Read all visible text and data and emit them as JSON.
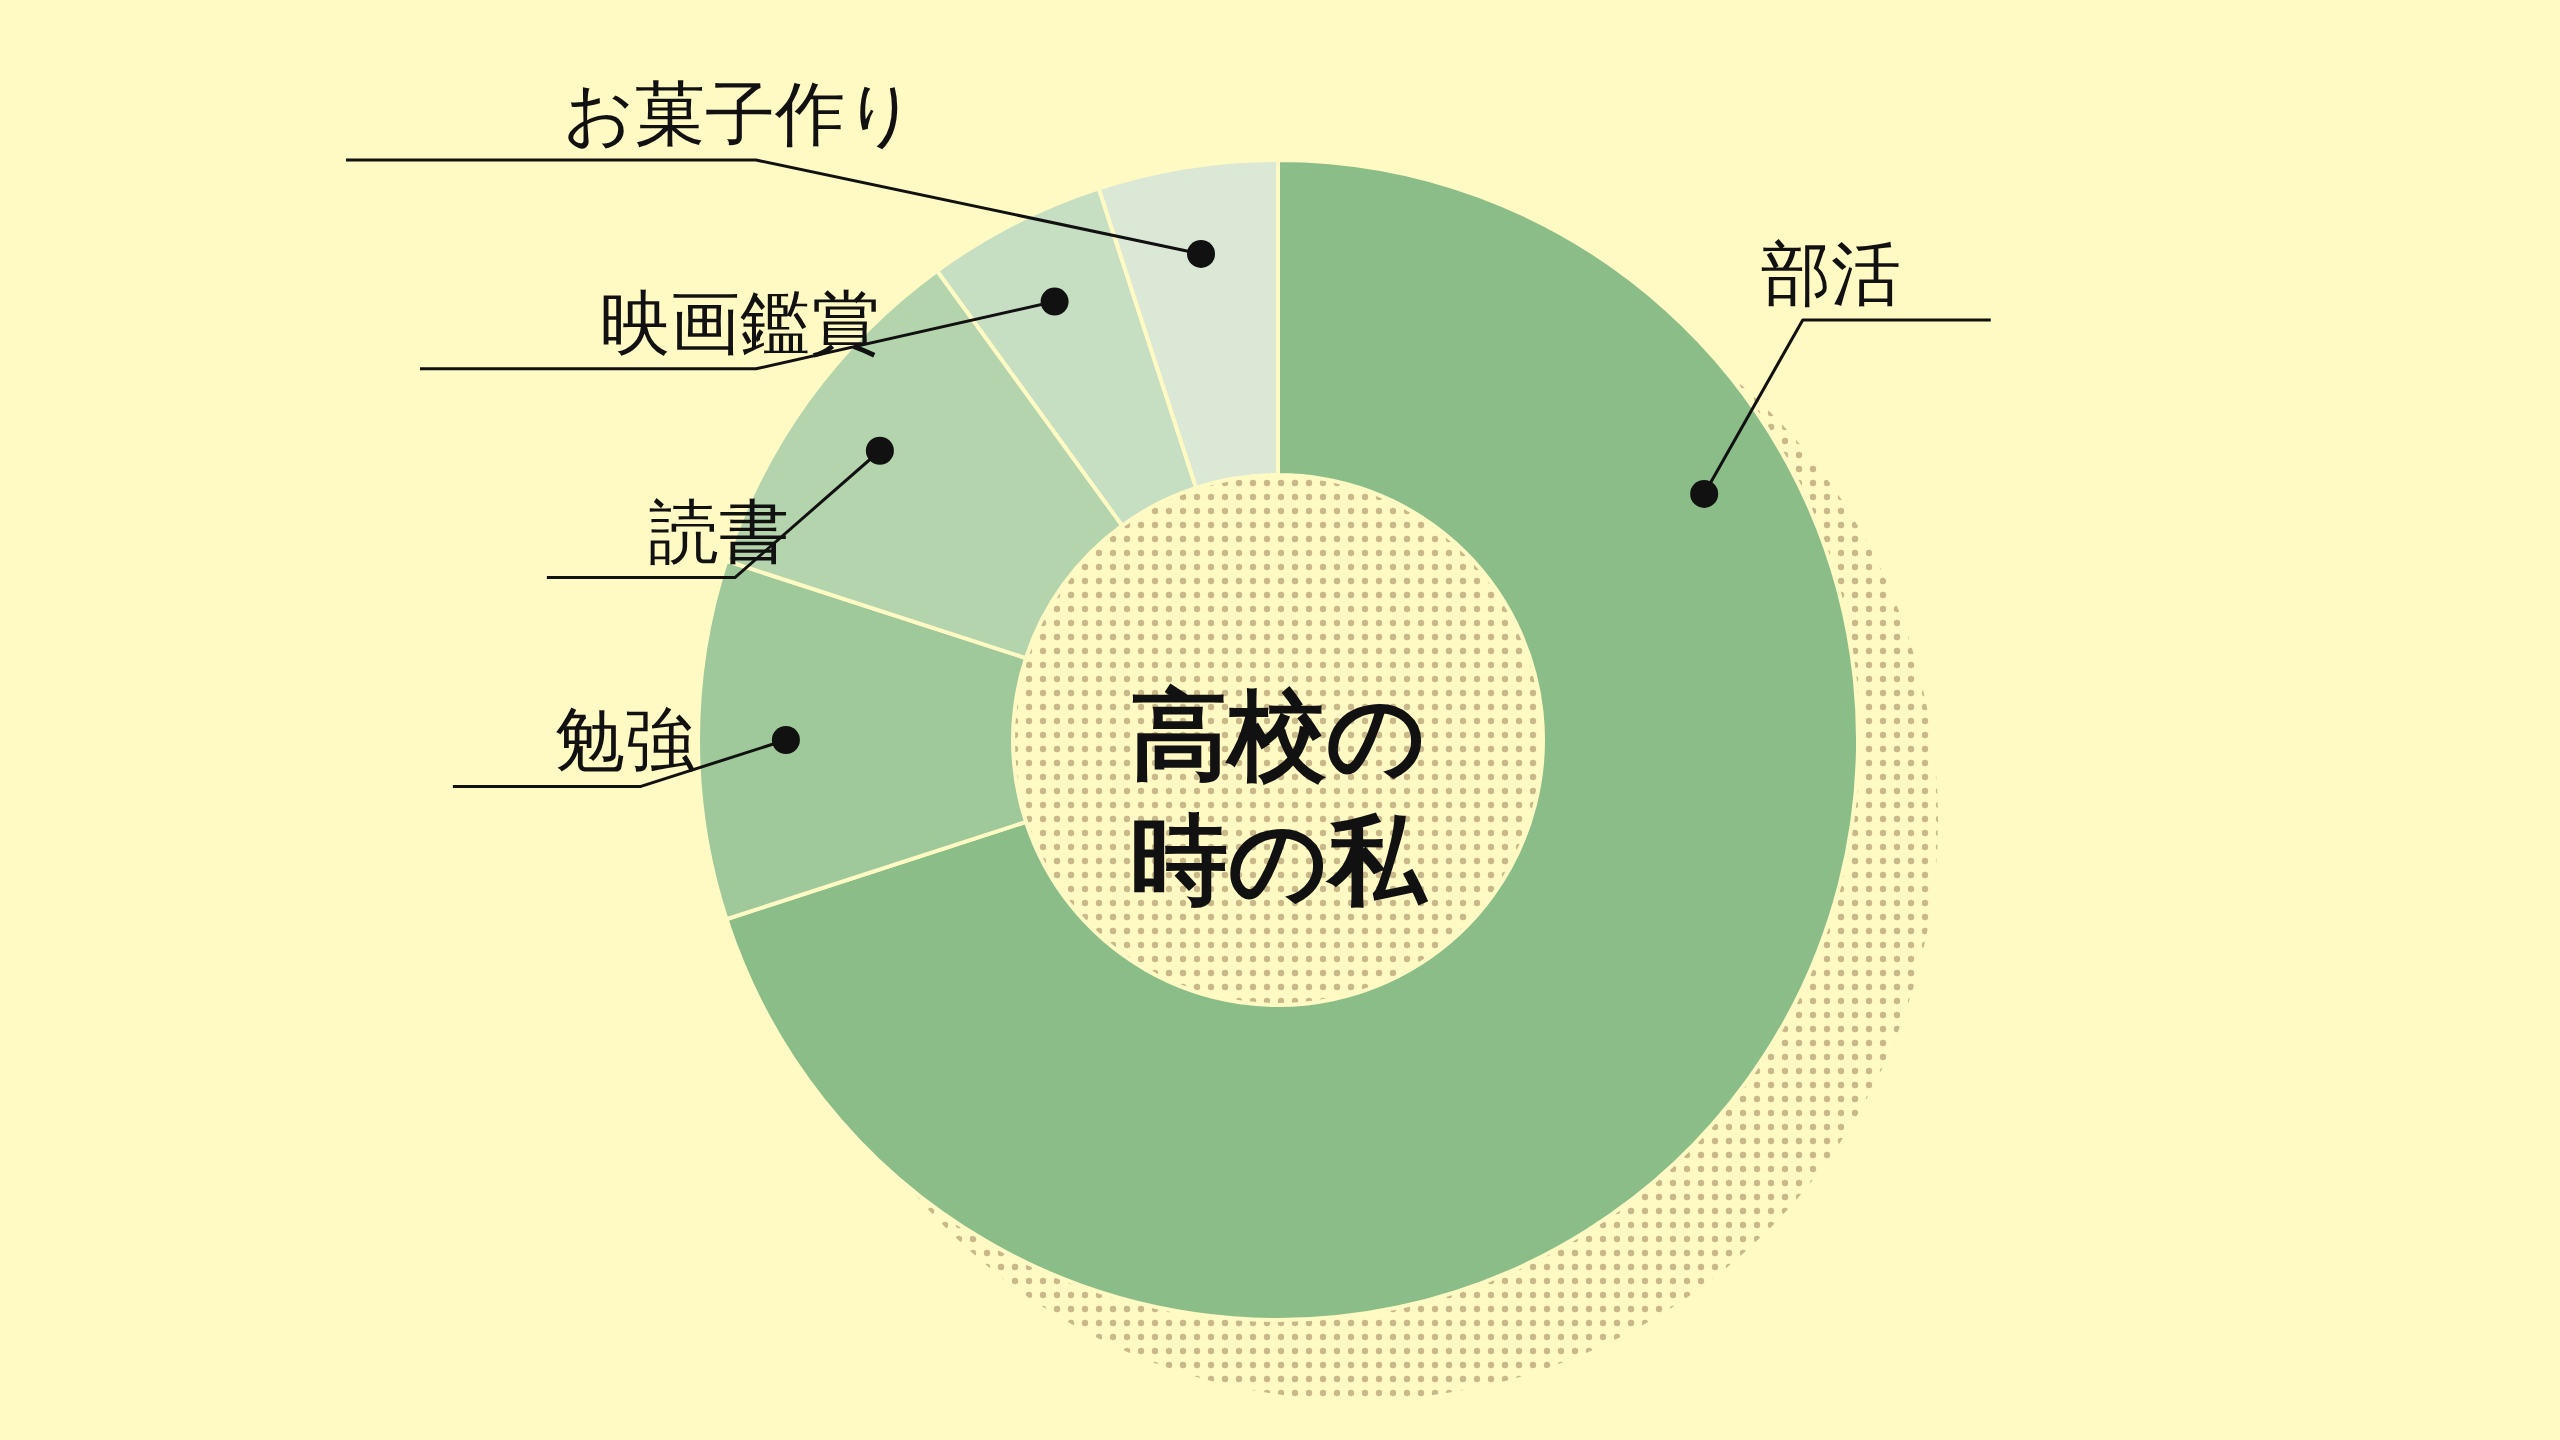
{
  "chart_data": {
    "type": "donut",
    "title": "高校の時の私",
    "categories": [
      "部活",
      "勉強",
      "読書",
      "映画鑑賞",
      "お菓子作り"
    ],
    "values": [
      70,
      10,
      10,
      5,
      5
    ],
    "colors": [
      "#8abd87",
      "#9fc99a",
      "#b3d4ad",
      "#c6dfc3",
      "#dbe8d6"
    ]
  }
}
